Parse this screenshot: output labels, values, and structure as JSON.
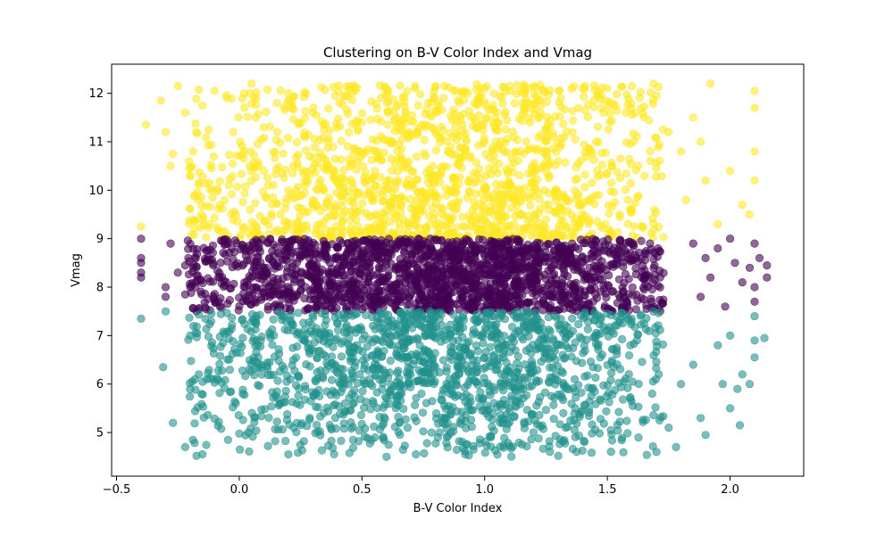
{
  "chart_data": {
    "type": "scatter",
    "title": "Clustering on B-V Color Index and Vmag",
    "xlabel": "B-V Color Index",
    "ylabel": "Vmag",
    "xlim": [
      -0.52,
      2.3
    ],
    "ylim": [
      4.1,
      12.6
    ],
    "x_ticks": [
      -0.5,
      0.0,
      0.5,
      1.0,
      1.5,
      2.0
    ],
    "x_tick_labels": [
      "−0.5",
      "0.0",
      "0.5",
      "1.0",
      "1.5",
      "2.0"
    ],
    "y_ticks": [
      5,
      6,
      7,
      8,
      9,
      10,
      11,
      12
    ],
    "y_tick_labels": [
      "5",
      "6",
      "7",
      "8",
      "9",
      "10",
      "11",
      "12"
    ],
    "grid": false,
    "legend": "none",
    "point_alpha": 0.6,
    "series": [
      {
        "cluster": 2,
        "color": "#fde725",
        "vmag_range": [
          9.0,
          12.2
        ],
        "points": [
          [
            -0.4,
            9.25
          ],
          [
            -0.38,
            11.35
          ],
          [
            -0.32,
            11.85
          ],
          [
            -0.3,
            11.2
          ],
          [
            -0.28,
            10.5
          ],
          [
            -0.27,
            10.75
          ],
          [
            -0.25,
            12.15
          ],
          [
            -0.22,
            11.6
          ],
          [
            -0.2,
            10.3
          ],
          [
            -0.18,
            9.9
          ],
          [
            -0.15,
            11.75
          ],
          [
            -0.1,
            12.05
          ],
          [
            -0.05,
            11.9
          ],
          [
            0.05,
            12.2
          ],
          [
            0.1,
            11.3
          ],
          [
            0.2,
            12.0
          ],
          [
            0.3,
            11.6
          ],
          [
            0.45,
            12.15
          ],
          [
            0.6,
            12.1
          ],
          [
            0.8,
            12.15
          ],
          [
            1.0,
            12.1
          ],
          [
            1.2,
            12.15
          ],
          [
            1.4,
            12.1
          ],
          [
            1.6,
            12.15
          ],
          [
            1.7,
            11.95
          ],
          [
            1.75,
            11.2
          ],
          [
            1.8,
            10.8
          ],
          [
            1.85,
            11.5
          ],
          [
            1.9,
            10.2
          ],
          [
            1.92,
            12.2
          ],
          [
            1.95,
            9.3
          ],
          [
            2.0,
            10.4
          ],
          [
            2.05,
            9.7
          ],
          [
            2.1,
            12.05
          ],
          [
            2.1,
            11.7
          ],
          [
            2.1,
            10.8
          ],
          [
            2.1,
            10.2
          ],
          [
            2.08,
            9.5
          ],
          [
            1.88,
            11.0
          ],
          [
            1.82,
            9.8
          ],
          [
            -0.12,
            9.3
          ],
          [
            0.3,
            9.8
          ],
          [
            0.8,
            10.2
          ],
          [
            1.3,
            10.6
          ],
          [
            0.5,
            11.4
          ],
          [
            1.0,
            11.0
          ],
          [
            1.6,
            9.6
          ],
          [
            0.1,
            10.4
          ]
        ]
      },
      {
        "cluster": 0,
        "color": "#440154",
        "vmag_range": [
          7.5,
          9.0
        ],
        "points": [
          [
            -0.4,
            9.0
          ],
          [
            -0.4,
            8.6
          ],
          [
            -0.4,
            8.5
          ],
          [
            -0.4,
            8.3
          ],
          [
            -0.4,
            8.2
          ],
          [
            -0.3,
            8.0
          ],
          [
            -0.3,
            7.8
          ],
          [
            -0.28,
            8.9
          ],
          [
            -0.25,
            8.3
          ],
          [
            -0.22,
            8.45
          ],
          [
            -0.2,
            8.0
          ],
          [
            -0.22,
            7.85
          ],
          [
            1.85,
            8.9
          ],
          [
            1.9,
            8.6
          ],
          [
            1.95,
            8.8
          ],
          [
            2.0,
            9.0
          ],
          [
            2.02,
            8.5
          ],
          [
            2.05,
            8.1
          ],
          [
            2.08,
            8.4
          ],
          [
            2.1,
            8.9
          ],
          [
            2.1,
            8.0
          ],
          [
            2.1,
            7.7
          ],
          [
            2.12,
            8.6
          ],
          [
            2.15,
            8.45
          ],
          [
            2.15,
            8.2
          ],
          [
            1.92,
            8.2
          ],
          [
            1.88,
            7.8
          ],
          [
            1.98,
            7.6
          ]
        ]
      },
      {
        "cluster": 1,
        "color": "#21918c",
        "vmag_range": [
          4.5,
          7.5
        ],
        "points": [
          [
            -0.4,
            7.35
          ],
          [
            -0.3,
            7.5
          ],
          [
            -0.31,
            6.35
          ],
          [
            -0.27,
            5.2
          ],
          [
            -0.22,
            4.7
          ],
          [
            -0.2,
            5.9
          ],
          [
            -0.2,
            7.0
          ],
          [
            -0.18,
            6.1
          ],
          [
            -0.15,
            4.55
          ],
          [
            1.8,
            6.0
          ],
          [
            1.85,
            6.4
          ],
          [
            1.88,
            5.3
          ],
          [
            1.9,
            4.95
          ],
          [
            1.95,
            6.8
          ],
          [
            1.97,
            6.0
          ],
          [
            2.0,
            7.0
          ],
          [
            2.0,
            5.5
          ],
          [
            2.03,
            5.9
          ],
          [
            2.05,
            6.2
          ],
          [
            2.04,
            5.15
          ],
          [
            2.1,
            7.4
          ],
          [
            2.1,
            6.9
          ],
          [
            2.1,
            6.55
          ],
          [
            2.08,
            6.0
          ],
          [
            2.14,
            6.95
          ],
          [
            1.78,
            4.7
          ],
          [
            1.7,
            4.6
          ],
          [
            1.75,
            5.1
          ],
          [
            0.72,
            4.55
          ],
          [
            0.6,
            4.5
          ],
          [
            1.3,
            4.52
          ],
          [
            0.2,
            4.55
          ]
        ]
      }
    ]
  }
}
